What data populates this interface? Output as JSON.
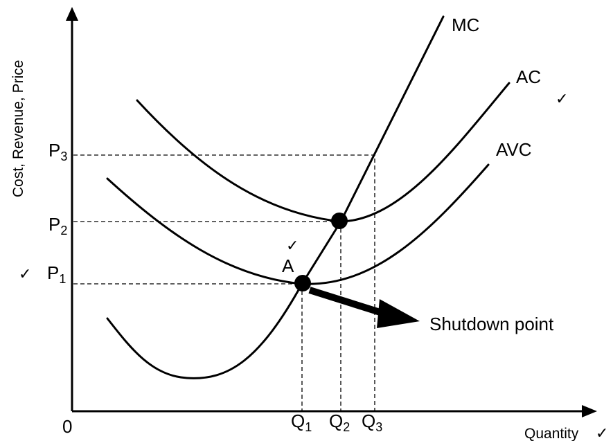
{
  "axes": {
    "y_label": "Cost, Revenue, Price",
    "x_label": "Quantity",
    "origin": "0"
  },
  "curves": {
    "mc": "MC",
    "ac": "AC",
    "avc": "AVC"
  },
  "price_levels": [
    {
      "main": "P",
      "sub": "3"
    },
    {
      "main": "P",
      "sub": "2"
    },
    {
      "main": "P",
      "sub": "1"
    }
  ],
  "quantity_levels": [
    {
      "main": "Q",
      "sub": "1"
    },
    {
      "main": "Q",
      "sub": "2"
    },
    {
      "main": "Q",
      "sub": "3"
    }
  ],
  "points": {
    "a_label": "A"
  },
  "annotation": {
    "shutdown": "Shutdown point"
  },
  "marks": {
    "check": "✓"
  }
}
